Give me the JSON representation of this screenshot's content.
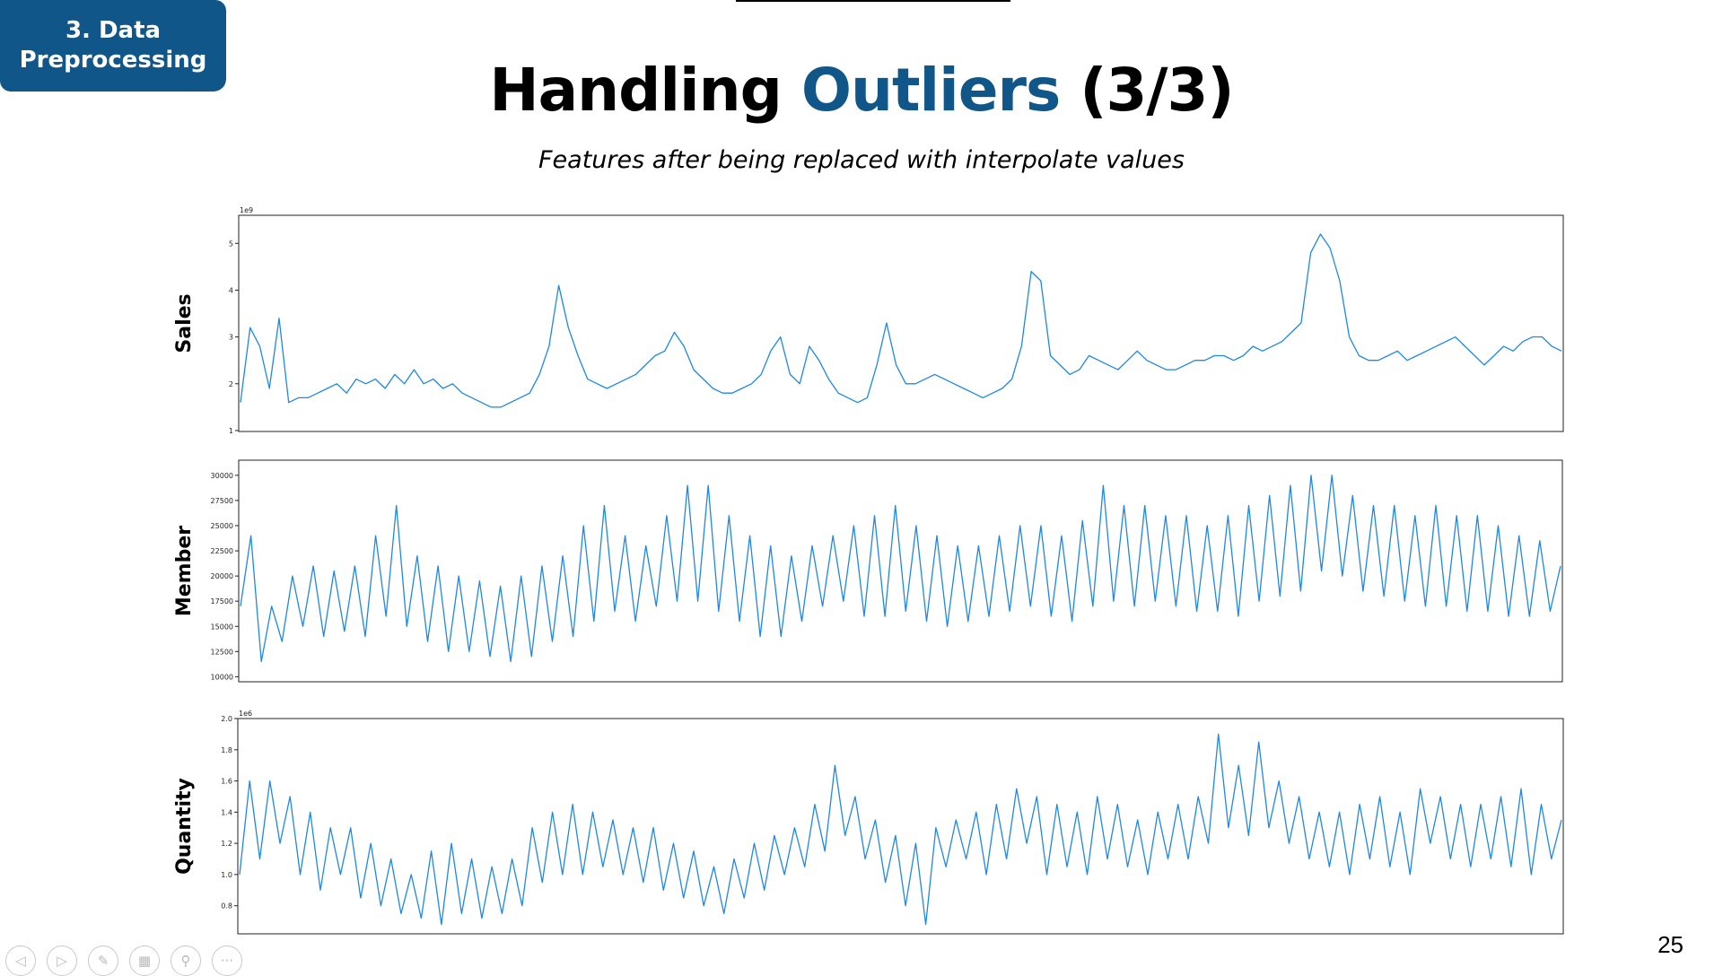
{
  "slide": {
    "section_badge_line1": "3. Data",
    "section_badge_line2": "Preprocessing",
    "title_part1": "Handling ",
    "title_accent": "Outliers",
    "title_part2": " (3/3)",
    "subtitle": "Features after being replaced with interpolate values",
    "page_number": "25"
  },
  "colors": {
    "accent": "#115689",
    "series_line": "#1e88e5",
    "badge_text": "#ffffff"
  },
  "nav_icons": [
    "previous-icon",
    "next-icon",
    "pen-icon",
    "slides-grid-icon",
    "zoom-icon",
    "more-options-icon"
  ],
  "chart_data": [
    {
      "type": "line",
      "ylabel": "Sales",
      "offset_text": "1e9",
      "ylim": [
        0.98,
        5.6
      ],
      "yticks": [
        1,
        2,
        3,
        4,
        5
      ],
      "ytick_labels": [
        "1",
        "2",
        "3",
        "4",
        "5"
      ],
      "grid": false,
      "series": [
        {
          "values": [
            1.6,
            3.2,
            2.8,
            1.9,
            3.4,
            1.6,
            1.7,
            1.7,
            1.8,
            1.9,
            2.0,
            1.8,
            2.1,
            2.0,
            2.1,
            1.9,
            2.2,
            2.0,
            2.3,
            2.0,
            2.1,
            1.9,
            2.0,
            1.8,
            1.7,
            1.6,
            1.5,
            1.5,
            1.6,
            1.7,
            1.8,
            2.2,
            2.8,
            4.1,
            3.2,
            2.6,
            2.1,
            2.0,
            1.9,
            2.0,
            2.1,
            2.2,
            2.4,
            2.6,
            2.7,
            3.1,
            2.8,
            2.3,
            2.1,
            1.9,
            1.8,
            1.8,
            1.9,
            2.0,
            2.2,
            2.7,
            3.0,
            2.2,
            2.0,
            2.8,
            2.5,
            2.1,
            1.8,
            1.7,
            1.6,
            1.7,
            2.4,
            3.3,
            2.4,
            2.0,
            2.0,
            2.1,
            2.2,
            2.1,
            2.0,
            1.9,
            1.8,
            1.7,
            1.8,
            1.9,
            2.1,
            2.8,
            4.4,
            4.2,
            2.6,
            2.4,
            2.2,
            2.3,
            2.6,
            2.5,
            2.4,
            2.3,
            2.5,
            2.7,
            2.5,
            2.4,
            2.3,
            2.3,
            2.4,
            2.5,
            2.5,
            2.6,
            2.6,
            2.5,
            2.6,
            2.8,
            2.7,
            2.8,
            2.9,
            3.1,
            3.3,
            4.8,
            5.2,
            4.9,
            4.2,
            3.0,
            2.6,
            2.5,
            2.5,
            2.6,
            2.7,
            2.5,
            2.6,
            2.7,
            2.8,
            2.9,
            3.0,
            2.8,
            2.6,
            2.4,
            2.6,
            2.8,
            2.7,
            2.9,
            3.0,
            3.0,
            2.8,
            2.7
          ]
        }
      ]
    },
    {
      "type": "line",
      "ylabel": "Member",
      "ylim": [
        9500,
        31500
      ],
      "yticks": [
        10000,
        12500,
        15000,
        17500,
        20000,
        22500,
        25000,
        27500,
        30000
      ],
      "ytick_labels": [
        "10000",
        "12500",
        "15000",
        "17500",
        "20000",
        "22500",
        "25000",
        "27500",
        "30000"
      ],
      "grid": false,
      "series": [
        {
          "values": [
            17000,
            24000,
            11500,
            17000,
            13500,
            20000,
            15000,
            21000,
            14000,
            20500,
            14500,
            21000,
            14000,
            24000,
            16000,
            27000,
            15000,
            22000,
            13500,
            21000,
            12500,
            20000,
            12500,
            19500,
            12000,
            19000,
            11500,
            20000,
            12000,
            21000,
            13500,
            22000,
            14000,
            25000,
            15500,
            27000,
            16500,
            24000,
            15500,
            23000,
            17000,
            26000,
            17500,
            29000,
            17500,
            29000,
            16500,
            26000,
            15500,
            24000,
            14000,
            23000,
            14000,
            22000,
            15500,
            23000,
            17000,
            24000,
            17500,
            25000,
            16000,
            26000,
            16000,
            27000,
            16500,
            25000,
            15500,
            24000,
            15000,
            23000,
            15500,
            23000,
            16000,
            24000,
            16500,
            25000,
            17000,
            25000,
            16000,
            24000,
            15500,
            25500,
            17000,
            29000,
            17500,
            27000,
            17000,
            27000,
            17500,
            26000,
            17000,
            26000,
            16500,
            25000,
            16500,
            26000,
            16000,
            27000,
            17500,
            28000,
            18000,
            29000,
            18500,
            30000,
            20500,
            30000,
            20000,
            28000,
            18500,
            27000,
            18000,
            27000,
            17500,
            26000,
            17000,
            27000,
            17000,
            26000,
            16500,
            26000,
            16500,
            25000,
            16000,
            24000,
            16000,
            23500,
            16500,
            21000
          ]
        }
      ]
    },
    {
      "type": "line",
      "ylabel": "Quantity",
      "offset_text": "1e6",
      "ylim": [
        0.62,
        2.0
      ],
      "yticks": [
        0.8,
        1.0,
        1.2,
        1.4,
        1.6,
        1.8,
        2.0
      ],
      "ytick_labels": [
        "0.8",
        "1.0",
        "1.2",
        "1.4",
        "1.6",
        "1.8",
        "2.0"
      ],
      "grid": false,
      "series": [
        {
          "values": [
            1.0,
            1.6,
            1.1,
            1.6,
            1.2,
            1.5,
            1.0,
            1.4,
            0.9,
            1.3,
            1.0,
            1.3,
            0.85,
            1.2,
            0.8,
            1.1,
            0.75,
            1.0,
            0.72,
            1.15,
            0.68,
            1.2,
            0.75,
            1.1,
            0.72,
            1.05,
            0.75,
            1.1,
            0.8,
            1.3,
            0.95,
            1.4,
            1.0,
            1.45,
            1.0,
            1.4,
            1.05,
            1.35,
            1.0,
            1.3,
            0.95,
            1.3,
            0.9,
            1.2,
            0.85,
            1.15,
            0.8,
            1.05,
            0.75,
            1.1,
            0.85,
            1.2,
            0.9,
            1.25,
            1.0,
            1.3,
            1.05,
            1.45,
            1.15,
            1.7,
            1.25,
            1.5,
            1.1,
            1.35,
            0.95,
            1.25,
            0.8,
            1.2,
            0.68,
            1.3,
            1.05,
            1.35,
            1.1,
            1.4,
            1.0,
            1.45,
            1.1,
            1.55,
            1.2,
            1.5,
            1.0,
            1.45,
            1.05,
            1.4,
            1.0,
            1.5,
            1.1,
            1.45,
            1.05,
            1.35,
            1.0,
            1.4,
            1.1,
            1.45,
            1.1,
            1.5,
            1.2,
            1.9,
            1.3,
            1.7,
            1.25,
            1.85,
            1.3,
            1.6,
            1.2,
            1.5,
            1.1,
            1.4,
            1.05,
            1.4,
            1.0,
            1.45,
            1.1,
            1.5,
            1.05,
            1.4,
            1.0,
            1.55,
            1.2,
            1.5,
            1.1,
            1.45,
            1.05,
            1.45,
            1.1,
            1.5,
            1.05,
            1.55,
            1.0,
            1.45,
            1.1,
            1.35
          ]
        }
      ]
    }
  ]
}
